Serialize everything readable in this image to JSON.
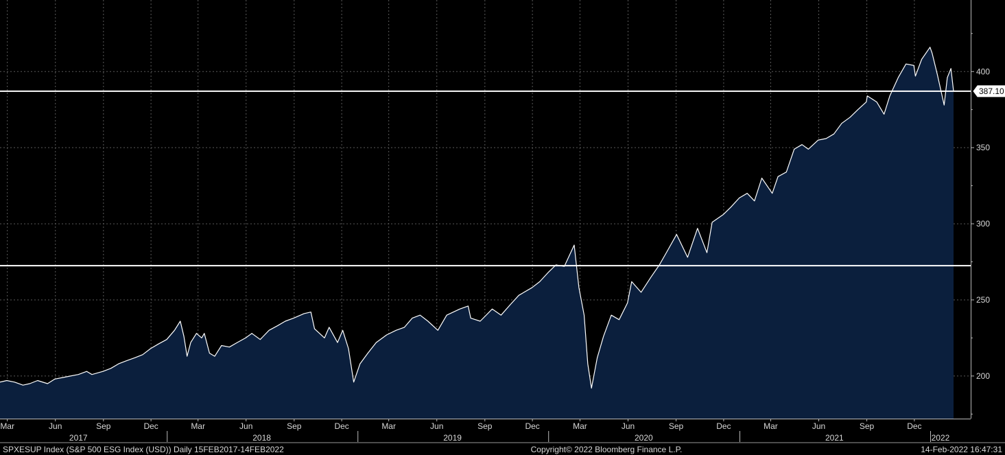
{
  "chart_data": {
    "type": "area",
    "ylim": [
      172,
      447
    ],
    "y_ticks": [
      200,
      250,
      300,
      350,
      400
    ],
    "grid": true,
    "colors": {
      "background": "#000000",
      "area_fill": "#0b1f3d",
      "line": "#ffffff",
      "grid": "#5a5a5a",
      "hline": "#ffffff"
    },
    "x_range": [
      "2017-02-15",
      "2022-02-14"
    ],
    "month_ticks": [
      {
        "label": "Mar",
        "date": "2017-03-01"
      },
      {
        "label": "Jun",
        "date": "2017-06-01"
      },
      {
        "label": "Sep",
        "date": "2017-09-01"
      },
      {
        "label": "Dec",
        "date": "2017-12-01"
      },
      {
        "label": "Mar",
        "date": "2018-03-01"
      },
      {
        "label": "Jun",
        "date": "2018-06-01"
      },
      {
        "label": "Sep",
        "date": "2018-09-01"
      },
      {
        "label": "Dec",
        "date": "2018-12-01"
      },
      {
        "label": "Mar",
        "date": "2019-03-01"
      },
      {
        "label": "Jun",
        "date": "2019-06-01"
      },
      {
        "label": "Sep",
        "date": "2019-09-01"
      },
      {
        "label": "Dec",
        "date": "2019-12-01"
      },
      {
        "label": "Mar",
        "date": "2020-03-01"
      },
      {
        "label": "Jun",
        "date": "2020-06-01"
      },
      {
        "label": "Sep",
        "date": "2020-09-01"
      },
      {
        "label": "Dec",
        "date": "2020-12-01"
      },
      {
        "label": "Mar",
        "date": "2021-03-01"
      },
      {
        "label": "Jun",
        "date": "2021-06-01"
      },
      {
        "label": "Sep",
        "date": "2021-09-01"
      },
      {
        "label": "Dec",
        "date": "2021-12-01"
      }
    ],
    "year_labels": [
      {
        "label": "2017",
        "date": "2017-07-15"
      },
      {
        "label": "2018",
        "date": "2018-07-01"
      },
      {
        "label": "2019",
        "date": "2019-07-01"
      },
      {
        "label": "2020",
        "date": "2020-07-01"
      },
      {
        "label": "2021",
        "date": "2021-07-01"
      },
      {
        "label": "2022",
        "date": "2022-01-20"
      }
    ],
    "year_separators": [
      "2018-01-01",
      "2019-01-01",
      "2020-01-01",
      "2021-01-01",
      "2022-01-01"
    ],
    "horizontal_lines": [
      387.1,
      272.5
    ],
    "last_price_label": "387.10",
    "last_price": 387.1,
    "series": [
      {
        "points": [
          [
            "2017-02-15",
            196
          ],
          [
            "2017-02-28",
            197
          ],
          [
            "2017-03-15",
            196
          ],
          [
            "2017-03-31",
            194
          ],
          [
            "2017-04-13",
            195
          ],
          [
            "2017-04-28",
            197
          ],
          [
            "2017-05-17",
            195
          ],
          [
            "2017-05-31",
            198
          ],
          [
            "2017-06-15",
            199
          ],
          [
            "2017-06-30",
            200
          ],
          [
            "2017-07-15",
            201
          ],
          [
            "2017-07-31",
            203
          ],
          [
            "2017-08-10",
            201
          ],
          [
            "2017-08-31",
            203
          ],
          [
            "2017-09-15",
            205
          ],
          [
            "2017-09-30",
            208
          ],
          [
            "2017-10-15",
            210
          ],
          [
            "2017-10-31",
            212
          ],
          [
            "2017-11-15",
            214
          ],
          [
            "2017-11-30",
            218
          ],
          [
            "2017-12-15",
            221
          ],
          [
            "2017-12-31",
            224
          ],
          [
            "2018-01-15",
            230
          ],
          [
            "2018-01-26",
            236
          ],
          [
            "2018-02-02",
            226
          ],
          [
            "2018-02-08",
            213
          ],
          [
            "2018-02-15",
            222
          ],
          [
            "2018-02-26",
            228
          ],
          [
            "2018-03-08",
            225
          ],
          [
            "2018-03-13",
            228
          ],
          [
            "2018-03-23",
            215
          ],
          [
            "2018-04-02",
            213
          ],
          [
            "2018-04-15",
            220
          ],
          [
            "2018-04-30",
            219
          ],
          [
            "2018-05-15",
            222
          ],
          [
            "2018-05-31",
            225
          ],
          [
            "2018-06-12",
            228
          ],
          [
            "2018-06-28",
            224
          ],
          [
            "2018-07-15",
            230
          ],
          [
            "2018-07-31",
            233
          ],
          [
            "2018-08-15",
            236
          ],
          [
            "2018-08-31",
            238
          ],
          [
            "2018-09-20",
            241
          ],
          [
            "2018-10-03",
            242
          ],
          [
            "2018-10-10",
            231
          ],
          [
            "2018-10-29",
            225
          ],
          [
            "2018-11-07",
            232
          ],
          [
            "2018-11-23",
            222
          ],
          [
            "2018-12-03",
            230
          ],
          [
            "2018-12-14",
            218
          ],
          [
            "2018-12-24",
            196
          ],
          [
            "2019-01-05",
            208
          ],
          [
            "2019-01-20",
            215
          ],
          [
            "2019-02-05",
            222
          ],
          [
            "2019-02-25",
            227
          ],
          [
            "2019-03-15",
            230
          ],
          [
            "2019-03-31",
            232
          ],
          [
            "2019-04-15",
            238
          ],
          [
            "2019-04-30",
            240
          ],
          [
            "2019-05-15",
            236
          ],
          [
            "2019-06-03",
            230
          ],
          [
            "2019-06-20",
            240
          ],
          [
            "2019-07-15",
            244
          ],
          [
            "2019-07-31",
            246
          ],
          [
            "2019-08-05",
            238
          ],
          [
            "2019-08-23",
            236
          ],
          [
            "2019-09-15",
            244
          ],
          [
            "2019-10-02",
            240
          ],
          [
            "2019-10-20",
            247
          ],
          [
            "2019-11-05",
            253
          ],
          [
            "2019-11-30",
            258
          ],
          [
            "2019-12-15",
            262
          ],
          [
            "2019-12-31",
            268
          ],
          [
            "2020-01-15",
            273
          ],
          [
            "2020-01-31",
            272
          ],
          [
            "2020-02-19",
            286
          ],
          [
            "2020-02-28",
            258
          ],
          [
            "2020-03-09",
            240
          ],
          [
            "2020-03-16",
            208
          ],
          [
            "2020-03-23",
            192
          ],
          [
            "2020-04-03",
            212
          ],
          [
            "2020-04-15",
            226
          ],
          [
            "2020-04-30",
            240
          ],
          [
            "2020-05-15",
            237
          ],
          [
            "2020-05-31",
            248
          ],
          [
            "2020-06-08",
            262
          ],
          [
            "2020-06-26",
            255
          ],
          [
            "2020-07-15",
            265
          ],
          [
            "2020-07-31",
            273
          ],
          [
            "2020-08-15",
            282
          ],
          [
            "2020-09-02",
            293
          ],
          [
            "2020-09-23",
            278
          ],
          [
            "2020-10-12",
            297
          ],
          [
            "2020-10-30",
            281
          ],
          [
            "2020-11-09",
            301
          ],
          [
            "2020-11-30",
            306
          ],
          [
            "2020-12-15",
            311
          ],
          [
            "2020-12-31",
            317
          ],
          [
            "2021-01-15",
            320
          ],
          [
            "2021-01-29",
            315
          ],
          [
            "2021-02-12",
            330
          ],
          [
            "2021-03-04",
            320
          ],
          [
            "2021-03-15",
            331
          ],
          [
            "2021-03-31",
            334
          ],
          [
            "2021-04-15",
            349
          ],
          [
            "2021-04-30",
            352
          ],
          [
            "2021-05-12",
            349
          ],
          [
            "2021-05-31",
            355
          ],
          [
            "2021-06-15",
            356
          ],
          [
            "2021-06-30",
            359
          ],
          [
            "2021-07-15",
            366
          ],
          [
            "2021-07-31",
            370
          ],
          [
            "2021-08-15",
            375
          ],
          [
            "2021-08-31",
            380
          ],
          [
            "2021-09-02",
            384
          ],
          [
            "2021-09-20",
            380
          ],
          [
            "2021-10-04",
            372
          ],
          [
            "2021-10-15",
            384
          ],
          [
            "2021-10-31",
            396
          ],
          [
            "2021-11-15",
            405
          ],
          [
            "2021-11-30",
            404
          ],
          [
            "2021-12-03",
            397
          ],
          [
            "2021-12-15",
            408
          ],
          [
            "2021-12-31",
            416
          ],
          [
            "2022-01-04",
            412
          ],
          [
            "2022-01-14",
            398
          ],
          [
            "2022-01-27",
            378
          ],
          [
            "2022-02-02",
            396
          ],
          [
            "2022-02-09",
            402
          ],
          [
            "2022-02-14",
            387.1
          ]
        ]
      }
    ]
  },
  "footer": {
    "left": "SPXESUP Index (S&P 500 ESG Index (USD))  Daily 15FEB2017-14FEB2022",
    "center": "Copyright© 2022 Bloomberg Finance L.P.",
    "right": "14-Feb-2022 16:47:31"
  }
}
